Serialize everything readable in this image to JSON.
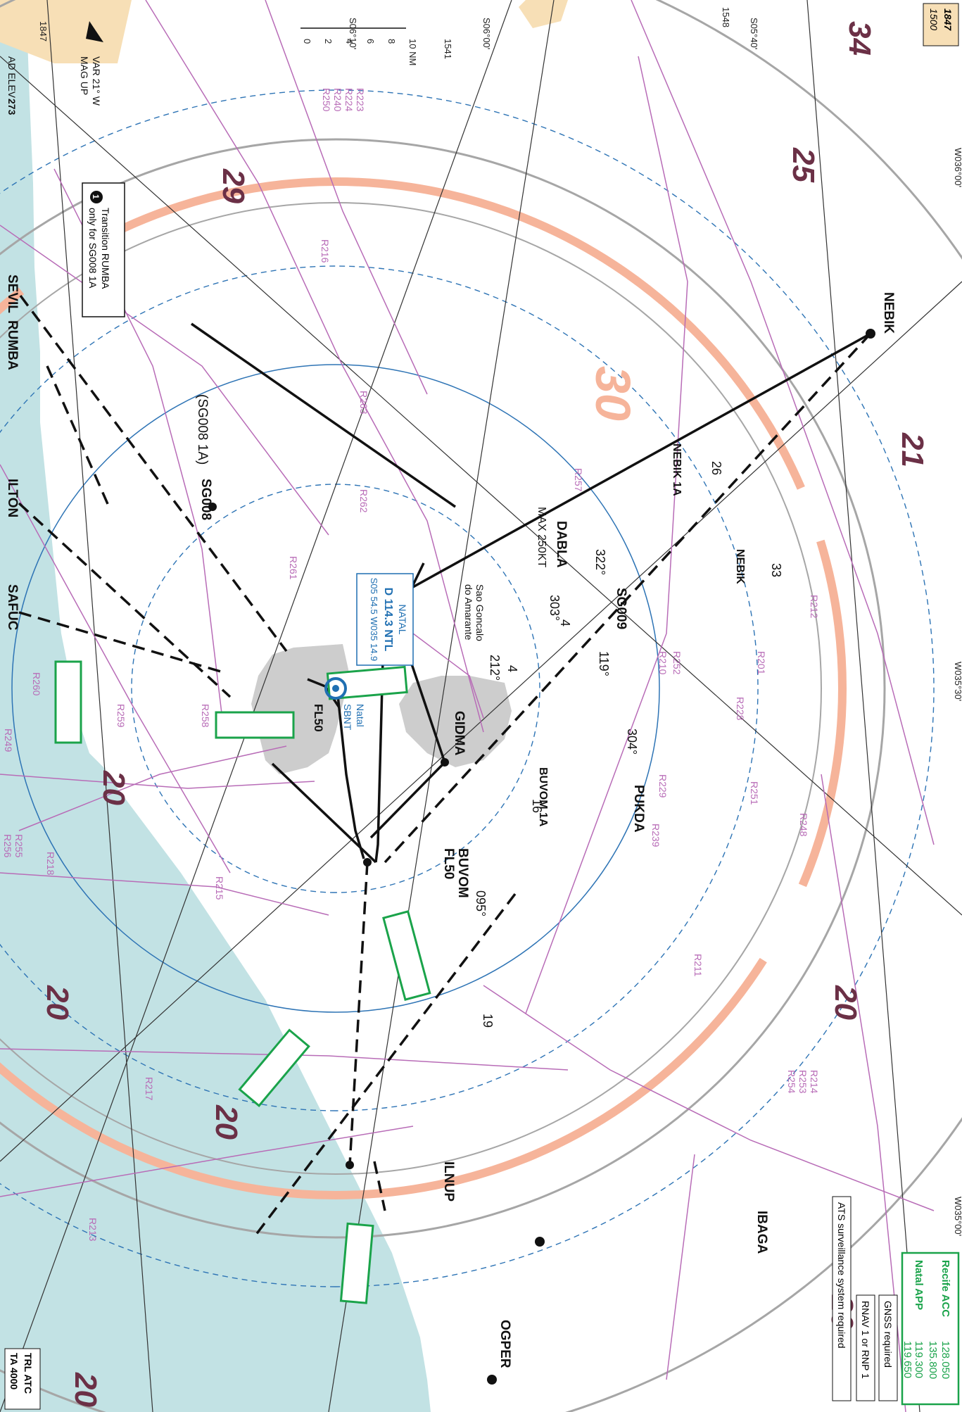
{
  "frequencies": {
    "recife_label": "Recife ACC",
    "recife_f1": "128.050",
    "recife_f2": "135.800",
    "natal_label": "Natal APP",
    "natal_f1": "119.300",
    "natal_f2": "119.650",
    "color": "#1aa34a"
  },
  "boxes": {
    "gnss": "GNSS required",
    "rnav": "RNAV 1 or RNP 1",
    "ats": "ATS surveillance system required",
    "trl1": "TRL ATC",
    "trl2": "TA 4000",
    "elev_top": "1847",
    "elev_bottom": "1500"
  },
  "note": {
    "marker": "1",
    "line1": "Transition RUMBA",
    "line2": "only for SG008 1A"
  },
  "variation": {
    "line1": "VAR 21° W",
    "line2": "MAG UP",
    "ad_elev_label": "AD ELEV",
    "ad_elev_value": "273"
  },
  "scale": {
    "ticks": [
      "0",
      "2",
      "4",
      "6",
      "8",
      "10 NM"
    ]
  },
  "coords": {
    "s0610": "S06°10'",
    "s0600": "S06°00'",
    "s0540": "S05°40'",
    "w3600": "W036°00'",
    "w3530": "W035°30'",
    "w3500": "W035°00'"
  },
  "spots": {
    "a": "1847",
    "b": "1541",
    "c": "1548"
  },
  "navaid": {
    "name": "NATAL",
    "ident": "D 114.3 NTL",
    "coord": "S05 54.5 W035 14.9",
    "color": "#1f6fb2"
  },
  "airport": {
    "name": "Natal",
    "icao": "SBNT",
    "fl": "FL50"
  },
  "city": {
    "line1": "Sao Goncalo",
    "line2": "do Amarante"
  },
  "waypoints": {
    "nebik": "NEBIK",
    "dabla": "DABLA",
    "dabla_speed": "MAX 250KT",
    "sg009": "SG009",
    "pukda": "PUKDA",
    "gidma": "GIDMA",
    "buvom": "BUVOM",
    "buvom_fl": "FL50",
    "ilnup": "ILNUP",
    "ogper": "OGPER",
    "ibaga": "IBAGA",
    "sg008": "SG008",
    "sg008_pre": "(SG008 1A)",
    "sevil": "SEVIL",
    "rumba": "RUMBA",
    "ilton": "ILTON",
    "safuc": "SAFUC"
  },
  "procedures": {
    "nebik": "NEBIK 1A",
    "buvom": "BUVOM 1A",
    "nebik_alt": "NEBIK"
  },
  "courses": {
    "c322": "322°",
    "c303": "303°",
    "c212": "212°",
    "c119": "119°",
    "c304": "304°",
    "c095": "095°",
    "d26": "26",
    "d33": "33",
    "d4a": "4",
    "d4b": "4",
    "d16": "16",
    "d19": "19"
  },
  "msa": {
    "m34": "34",
    "m25": "25",
    "m29": "29",
    "m21": "21",
    "m30": "30",
    "m20": "20"
  },
  "restricted": [
    "R223",
    "R224",
    "R240",
    "R250",
    "R216",
    "R263",
    "R262",
    "R261",
    "R257",
    "R212",
    "R252",
    "R210",
    "R201",
    "R228",
    "R229",
    "R251",
    "R248",
    "R239",
    "R260",
    "R259",
    "R258",
    "R249",
    "R255",
    "R256",
    "R218",
    "R215",
    "R211",
    "R214",
    "R253",
    "R254",
    "R217",
    "R213"
  ],
  "colors": {
    "sea": "#c2e2e4",
    "land": "#ffffff",
    "ring": "#f6b49a",
    "restricted": "#b86cb7",
    "arrow": "#1aa34a",
    "navaid_ring": "#2e74b5",
    "grey_ring": "#a6a6a6"
  }
}
